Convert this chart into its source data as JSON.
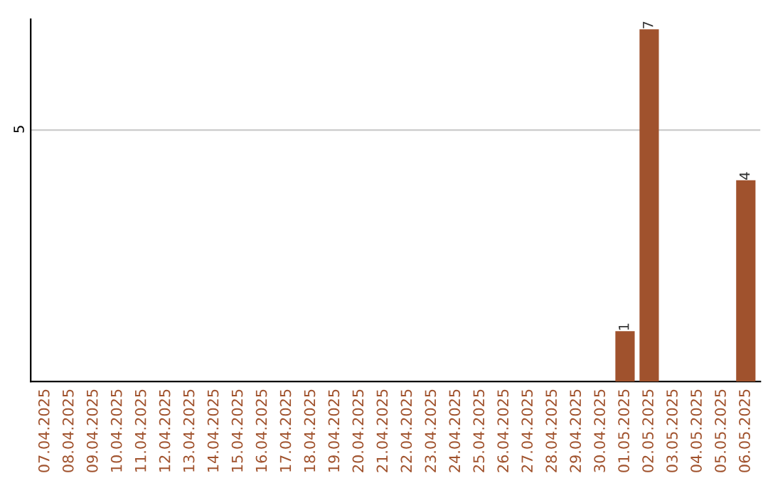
{
  "chart_data": {
    "type": "bar",
    "categories": [
      "07.04.2025",
      "08.04.2025",
      "09.04.2025",
      "10.04.2025",
      "11.04.2025",
      "12.04.2025",
      "13.04.2025",
      "14.04.2025",
      "15.04.2025",
      "16.04.2025",
      "17.04.2025",
      "18.04.2025",
      "19.04.2025",
      "20.04.2025",
      "21.04.2025",
      "22.04.2025",
      "23.04.2025",
      "24.04.2025",
      "25.04.2025",
      "26.04.2025",
      "27.04.2025",
      "28.04.2025",
      "29.04.2025",
      "30.04.2025",
      "01.05.2025",
      "02.05.2025",
      "03.05.2025",
      "04.05.2025",
      "05.05.2025",
      "06.05.2025"
    ],
    "values": [
      null,
      null,
      null,
      null,
      null,
      null,
      null,
      null,
      null,
      null,
      null,
      null,
      null,
      null,
      null,
      null,
      null,
      null,
      null,
      null,
      null,
      null,
      null,
      null,
      1,
      7,
      null,
      null,
      null,
      4
    ],
    "data_labels": true,
    "color": "#a0522d",
    "ylim": [
      0,
      7.2
    ],
    "yticks": [
      5
    ],
    "grid": "y"
  }
}
